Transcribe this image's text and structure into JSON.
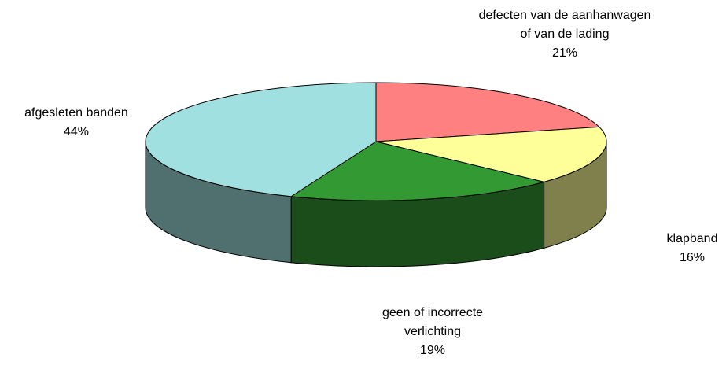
{
  "chart_data": {
    "type": "pie3d",
    "categories": [
      "defecten van de aanhanwagen of van de lading",
      "klapband",
      "geen of incorrecte verlichting",
      "afgesleten banden"
    ],
    "values": [
      21,
      16,
      19,
      44
    ],
    "value_labels": [
      "21%",
      "16%",
      "19%",
      "44%"
    ],
    "colors": [
      "#ff8080",
      "#ffff99",
      "#339933",
      "#a0e0e0"
    ],
    "side_colors": [
      "#804040",
      "#80804d",
      "#1a4d1a",
      "#507070"
    ]
  }
}
